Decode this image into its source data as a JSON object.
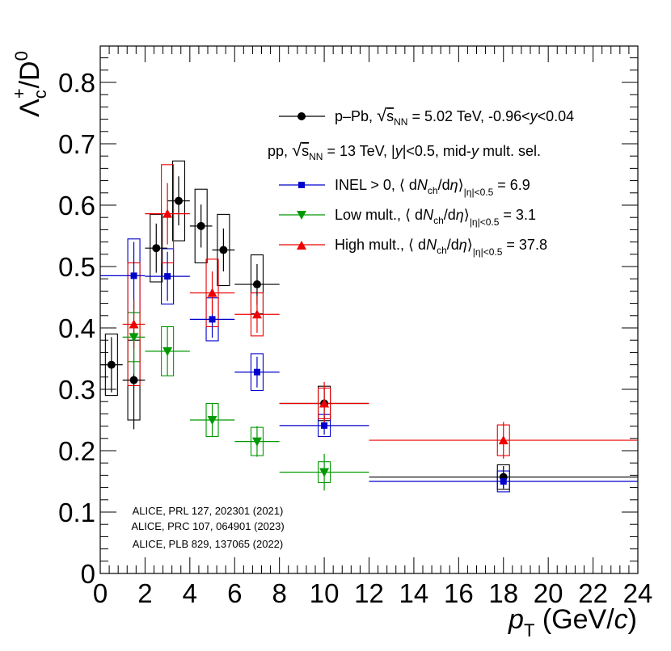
{
  "chart_data": {
    "type": "scatter",
    "xlabel": "p_T (GeV/c)",
    "ylabel": "Λc+/D0",
    "xlim": [
      0,
      24
    ],
    "ylim": [
      0,
      0.86
    ],
    "x_ticks": [
      0,
      2,
      4,
      6,
      8,
      10,
      12,
      14,
      16,
      18,
      20,
      22,
      24
    ],
    "y_ticks": [
      0,
      0.1,
      0.2,
      0.3,
      0.4,
      0.5,
      0.6,
      0.7,
      0.8
    ],
    "x_tick_labels": [
      "0",
      "2",
      "4",
      "6",
      "8",
      "10",
      "12",
      "14",
      "16",
      "18",
      "20",
      "22",
      "24"
    ],
    "y_tick_labels": [
      "0",
      "0.1",
      "0.2",
      "0.3",
      "0.4",
      "0.5",
      "0.6",
      "0.7",
      "0.8"
    ],
    "legend_header": "pp, √sNN = 13 TeV, |y|<0.5, mid-y mult. sel.",
    "series": [
      {
        "name": "p–Pb, √sNN = 5.02 TeV, -0.96<y<0.04",
        "color": "#000000",
        "marker": "circle",
        "points": [
          {
            "x": 0.5,
            "y": 0.34,
            "xlo": 0,
            "xhi": 1,
            "stat": 0.045,
            "syst": 0.05
          },
          {
            "x": 1.5,
            "y": 0.315,
            "xlo": 1,
            "xhi": 2,
            "stat": 0.08,
            "syst": 0.065
          },
          {
            "x": 2.5,
            "y": 0.53,
            "xlo": 2,
            "xhi": 3,
            "stat": 0.04,
            "syst": 0.055
          },
          {
            "x": 3.5,
            "y": 0.607,
            "xlo": 3,
            "xhi": 4,
            "stat": 0.04,
            "syst": 0.065
          },
          {
            "x": 4.5,
            "y": 0.566,
            "xlo": 4,
            "xhi": 5,
            "stat": 0.035,
            "syst": 0.06
          },
          {
            "x": 5.5,
            "y": 0.527,
            "xlo": 5,
            "xhi": 6,
            "stat": 0.035,
            "syst": 0.058
          },
          {
            "x": 7.0,
            "y": 0.471,
            "xlo": 6,
            "xhi": 8,
            "stat": 0.033,
            "syst": 0.048
          },
          {
            "x": 10.0,
            "y": 0.277,
            "xlo": 8,
            "xhi": 12,
            "stat": 0.025,
            "syst": 0.028
          },
          {
            "x": 18.0,
            "y": 0.157,
            "xlo": 12,
            "xhi": 24,
            "stat": 0.018,
            "syst": 0.02
          }
        ]
      },
      {
        "name": "INEL > 0, ⟨ dNch/dη⟩|η|<0.5 = 6.9",
        "color": "#0000cc",
        "marker": "square",
        "points": [
          {
            "x": 1.5,
            "y": 0.485,
            "xlo": 0,
            "xhi": 2,
            "stat": 0.055,
            "syst": 0.06
          },
          {
            "x": 3.0,
            "y": 0.484,
            "xlo": 2,
            "xhi": 4,
            "stat": 0.04,
            "syst": 0.045
          },
          {
            "x": 5.0,
            "y": 0.414,
            "xlo": 4,
            "xhi": 6,
            "stat": 0.03,
            "syst": 0.035
          },
          {
            "x": 7.0,
            "y": 0.328,
            "xlo": 6,
            "xhi": 8,
            "stat": 0.025,
            "syst": 0.03
          },
          {
            "x": 10.0,
            "y": 0.241,
            "xlo": 8,
            "xhi": 12,
            "stat": 0.015,
            "syst": 0.018
          },
          {
            "x": 18.0,
            "y": 0.15,
            "xlo": 12,
            "xhi": 24,
            "stat": 0.012,
            "syst": 0.017
          }
        ]
      },
      {
        "name": "Low mult., ⟨ dNch/dη⟩|η|<0.5 = 3.1",
        "color": "#009900",
        "marker": "triangle-down",
        "points": [
          {
            "x": 1.5,
            "y": 0.385,
            "xlo": 1,
            "xhi": 2,
            "stat": 0.06,
            "syst": 0.04
          },
          {
            "x": 3.0,
            "y": 0.362,
            "xlo": 2,
            "xhi": 4,
            "stat": 0.04,
            "syst": 0.04
          },
          {
            "x": 5.0,
            "y": 0.25,
            "xlo": 4,
            "xhi": 6,
            "stat": 0.028,
            "syst": 0.027
          },
          {
            "x": 7.0,
            "y": 0.215,
            "xlo": 6,
            "xhi": 8,
            "stat": 0.025,
            "syst": 0.023
          },
          {
            "x": 10.0,
            "y": 0.165,
            "xlo": 8,
            "xhi": 12,
            "stat": 0.03,
            "syst": 0.017
          }
        ]
      },
      {
        "name": "High mult., ⟨ dNch/dη⟩|η|<0.5 = 37.8",
        "color": "#ee0000",
        "marker": "triangle-up",
        "points": [
          {
            "x": 1.5,
            "y": 0.406,
            "xlo": 1,
            "xhi": 2,
            "stat": 0.04,
            "syst": 0.1
          },
          {
            "x": 3.0,
            "y": 0.586,
            "xlo": 2,
            "xhi": 4,
            "stat": 0.05,
            "syst": 0.08
          },
          {
            "x": 5.0,
            "y": 0.457,
            "xlo": 4,
            "xhi": 6,
            "stat": 0.035,
            "syst": 0.055
          },
          {
            "x": 7.0,
            "y": 0.422,
            "xlo": 6,
            "xhi": 8,
            "stat": 0.03,
            "syst": 0.035
          },
          {
            "x": 10.0,
            "y": 0.277,
            "xlo": 8,
            "xhi": 12,
            "stat": 0.035,
            "syst": 0.025
          },
          {
            "x": 18.0,
            "y": 0.217,
            "xlo": 12,
            "xhi": 24,
            "stat": 0.03,
            "syst": 0.025
          }
        ]
      }
    ],
    "references": [
      "ALICE, PRL 127, 202301 (2021)",
      "ALICE, PRC 107, 064901 (2023)",
      "ALICE, PLB 829, 137065 (2022)"
    ]
  }
}
